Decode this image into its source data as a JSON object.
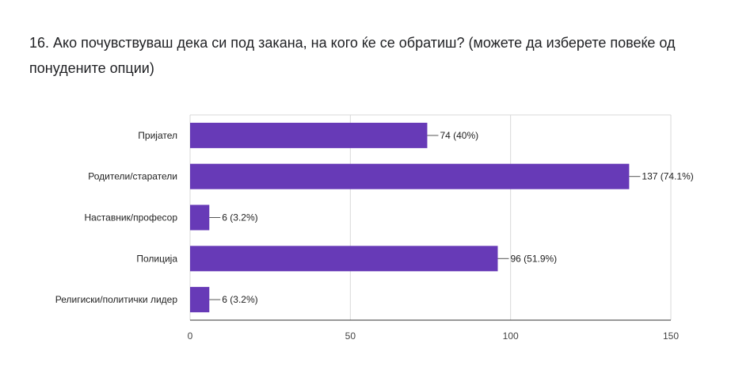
{
  "question": {
    "title": "16. Ако почувствуваш дека си под закана, на кого ќе се обратиш? (можете да изберете повеќе од понудените опции)"
  },
  "chart_data": {
    "type": "bar",
    "orientation": "horizontal",
    "title": "16. Ако почувствуваш дека си под закана, на кого ќе се обратиш? (можете да изберете повеќе од понудените опции)",
    "categories": [
      "Пријател",
      "Родители/старатели",
      "Наставник/професор",
      "Полиција",
      "Религиски/политички лидер"
    ],
    "values": [
      74,
      137,
      6,
      96,
      6
    ],
    "data_labels": [
      "74 (40%)",
      "137 (74.1%)",
      "6 (3.2%)",
      "96 (51.9%)",
      "6 (3.2%)"
    ],
    "xlim": [
      0,
      150
    ],
    "xticks": [
      0,
      50,
      100,
      150
    ],
    "xtick_labels": [
      "0",
      "50",
      "100",
      "150"
    ],
    "grid": true,
    "legend": "none",
    "bar_color": "#673ab7",
    "grid_color": "#d9d9d9"
  }
}
